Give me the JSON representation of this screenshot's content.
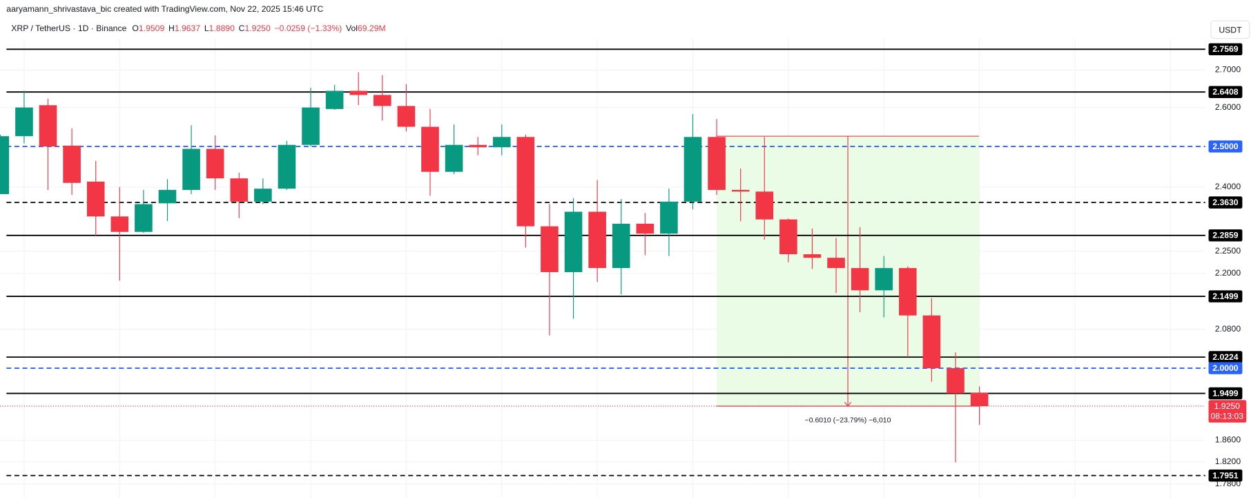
{
  "header": {
    "attribution": "aaryamann_shrivastava_bic created with TradingView.com, Nov 22, 2025 15:46 UTC",
    "symbol": "XRP / TetherUS · 1D · Binance",
    "open_label": "O",
    "open": "1.9509",
    "high_label": "H",
    "high": "1.9637",
    "low_label": "L",
    "low": "1.8890",
    "close_label": "C",
    "close": "1.9250",
    "change": "−0.0259 (−1.33%)",
    "volume_label": "Vol",
    "volume": "69.29M",
    "currency": "USDT"
  },
  "chart_data": {
    "type": "candlestick",
    "log_scale": true,
    "ylim": [
      1.755,
      2.787
    ],
    "yticks": [
      {
        "value": 2.7,
        "label": "2.7000"
      },
      {
        "value": 2.6,
        "label": "2.6000"
      },
      {
        "value": 2.4,
        "label": "2.4000"
      },
      {
        "value": 2.25,
        "label": "2.2500"
      },
      {
        "value": 2.2,
        "label": "2.2000"
      },
      {
        "value": 2.08,
        "label": "2.0800"
      },
      {
        "value": 1.86,
        "label": "1.8600"
      },
      {
        "value": 1.82,
        "label": "1.8200"
      },
      {
        "value": 1.78,
        "label": "1.7800"
      }
    ],
    "grid": true,
    "up_color": "#089981",
    "down_color": "#f23645",
    "series": [
      {
        "open": [
          2.383,
          2.526,
          2.606,
          2.502,
          2.413,
          2.33,
          2.294,
          2.361,
          2.393,
          2.494,
          2.421,
          2.365,
          2.396,
          2.504,
          2.596,
          2.644,
          2.633,
          2.604,
          2.55,
          2.437,
          2.504,
          2.498,
          2.524,
          2.307,
          2.203,
          2.341,
          2.212,
          2.313,
          2.29,
          2.365,
          2.524,
          2.393,
          2.389,
          2.323,
          2.243,
          2.235,
          2.212,
          2.163,
          2.212,
          2.109,
          2.0,
          1.9509
        ],
        "high": [
          2.53,
          2.644,
          2.623,
          2.546,
          2.464,
          2.4,
          2.393,
          2.419,
          2.554,
          2.528,
          2.435,
          2.421,
          2.514,
          2.652,
          2.66,
          2.694,
          2.686,
          2.662,
          2.596,
          2.556,
          2.524,
          2.556,
          2.53,
          2.359,
          2.373,
          2.417,
          2.371,
          2.338,
          2.396,
          2.583,
          2.57,
          2.445,
          2.524,
          2.325,
          2.302,
          2.28,
          2.305,
          2.239,
          2.216,
          2.146,
          2.032,
          1.9637
        ],
        "low": [
          2.383,
          2.508,
          2.393,
          2.381,
          2.284,
          2.184,
          2.292,
          2.319,
          2.383,
          2.393,
          2.326,
          2.359,
          2.393,
          2.5,
          2.594,
          2.606,
          2.566,
          2.538,
          2.379,
          2.431,
          2.478,
          2.478,
          2.258,
          2.067,
          2.102,
          2.181,
          2.154,
          2.241,
          2.239,
          2.347,
          2.381,
          2.319,
          2.276,
          2.225,
          2.21,
          2.157,
          2.116,
          2.105,
          2.022,
          1.973,
          1.819,
          1.889
        ],
        "close": [
          2.526,
          2.6,
          2.5,
          2.41,
          2.33,
          2.294,
          2.359,
          2.393,
          2.494,
          2.421,
          2.365,
          2.396,
          2.504,
          2.6,
          2.644,
          2.633,
          2.604,
          2.55,
          2.437,
          2.504,
          2.498,
          2.524,
          2.307,
          2.203,
          2.341,
          2.212,
          2.313,
          2.29,
          2.365,
          2.524,
          2.393,
          2.389,
          2.323,
          2.243,
          2.235,
          2.212,
          2.163,
          2.212,
          2.109,
          2.0,
          1.95,
          1.925
        ]
      }
    ],
    "levels": [
      {
        "value": 2.7569,
        "label": "2.7569",
        "style": "solid",
        "color": "#000000"
      },
      {
        "value": 2.6408,
        "label": "2.6408",
        "style": "solid",
        "color": "#000000"
      },
      {
        "value": 2.5,
        "label": "2.5000",
        "style": "dashed",
        "color": "#2962ff"
      },
      {
        "value": 2.363,
        "label": "2.3630",
        "style": "dashed",
        "color": "#000000"
      },
      {
        "value": 2.2859,
        "label": "2.2859",
        "style": "solid",
        "color": "#000000"
      },
      {
        "value": 2.1499,
        "label": "2.1499",
        "style": "solid",
        "color": "#000000"
      },
      {
        "value": 2.0224,
        "label": "2.0224",
        "style": "solid",
        "color": "#000000"
      },
      {
        "value": 2.0,
        "label": "2.0000",
        "style": "dashed",
        "color": "#2962ff"
      },
      {
        "value": 1.9499,
        "label": "1.9499",
        "style": "solid",
        "color": "#000000"
      },
      {
        "value": 1.7951,
        "label": "1.7951",
        "style": "dashed",
        "color": "#000000"
      }
    ],
    "measure": {
      "from": 2.526,
      "to": 1.925,
      "label": "−0.6010 (−23.79%) −6,010"
    },
    "last_price": {
      "value": 1.925,
      "label": "1.9250"
    },
    "countdown": "08:13:03"
  }
}
